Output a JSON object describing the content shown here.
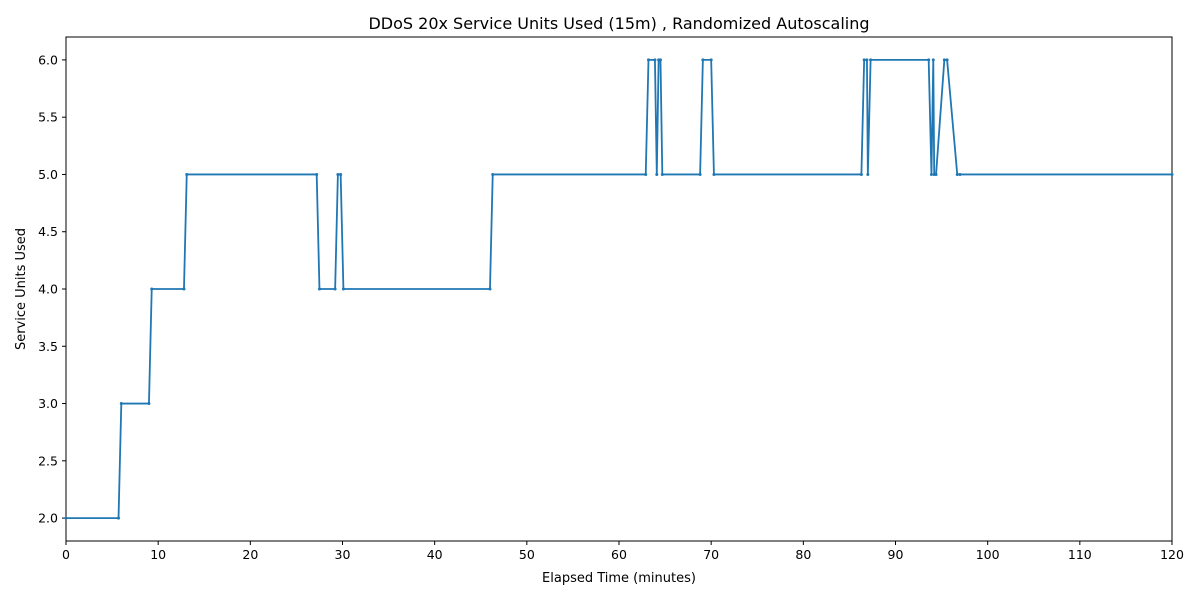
{
  "chart_data": {
    "type": "line",
    "title": "DDoS 20x Service Units Used (15m) , Randomized Autoscaling",
    "xlabel": "Elapsed Time (minutes)",
    "ylabel": "Service Units Used",
    "xlim": [
      0,
      120
    ],
    "ylim": [
      1.8,
      6.2
    ],
    "grid": false,
    "legend": "none",
    "x_ticks": [
      0,
      10,
      20,
      30,
      40,
      50,
      60,
      70,
      80,
      90,
      100,
      110,
      120
    ],
    "x_tick_labels": [
      "0",
      "10",
      "20",
      "30",
      "40",
      "50",
      "60",
      "70",
      "80",
      "90",
      "100",
      "110",
      "120"
    ],
    "y_ticks": [
      2.0,
      2.5,
      3.0,
      3.5,
      4.0,
      4.5,
      5.0,
      5.5,
      6.0
    ],
    "y_tick_labels": [
      "2.0",
      "2.5",
      "3.0",
      "3.5",
      "4.0",
      "4.5",
      "5.0",
      "5.5",
      "6.0"
    ],
    "series": [
      {
        "color": "#1f77b4",
        "x": [
          0,
          5.7,
          6.0,
          9.0,
          9.3,
          12.8,
          13.1,
          27.2,
          27.5,
          29.2,
          29.5,
          29.8,
          30.1,
          46.0,
          46.3,
          62.9,
          63.2,
          63.9,
          64.1,
          64.3,
          64.5,
          64.7,
          68.8,
          69.1,
          70.0,
          70.3,
          86.3,
          86.6,
          86.9,
          87.0,
          87.3,
          93.6,
          93.9,
          94.1,
          94.2,
          94.4,
          95.3,
          95.6,
          96.7,
          97.0,
          120
        ],
        "y": [
          2,
          2,
          3,
          3,
          4,
          4,
          5,
          5,
          4,
          4,
          5,
          5,
          4,
          4,
          5,
          5,
          6,
          6,
          5,
          6,
          6,
          5,
          5,
          6,
          6,
          5,
          5,
          6,
          6,
          5,
          6,
          6,
          5,
          6,
          5,
          5,
          6,
          6,
          5,
          5,
          5
        ]
      }
    ]
  }
}
